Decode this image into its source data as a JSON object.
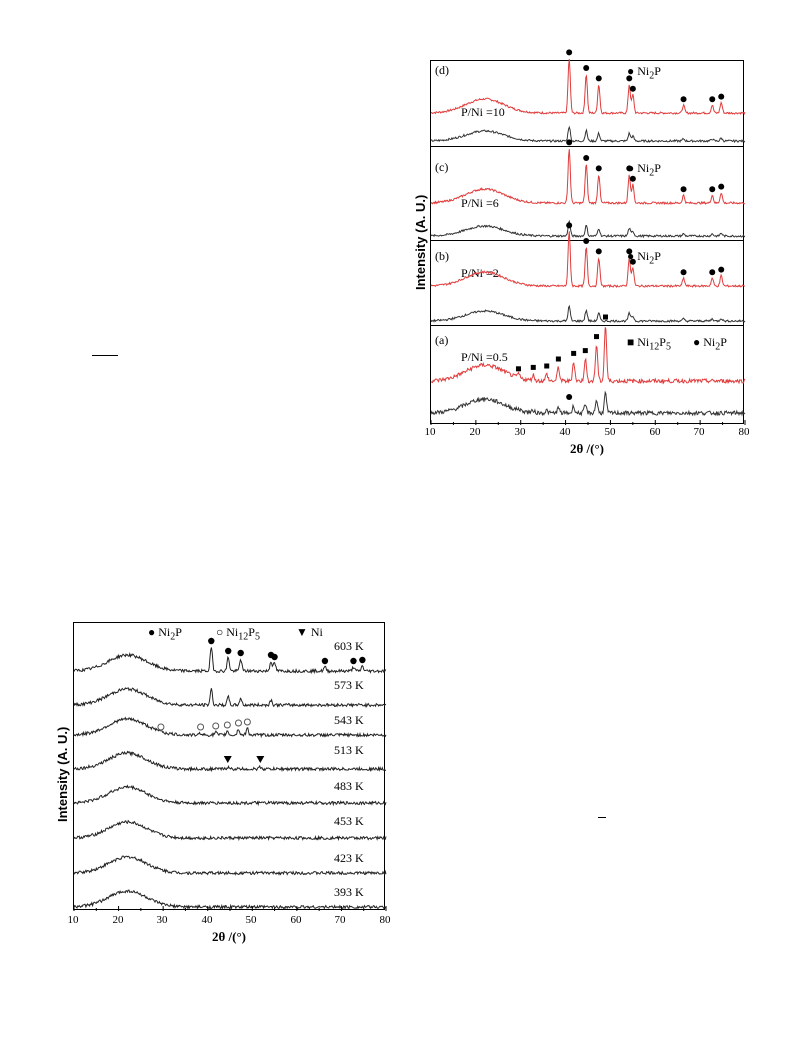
{
  "chart_data": [
    {
      "type": "line",
      "xlabel": "2θ /(°)",
      "ylabel": "Intensity (A. U.)",
      "xlim": [
        10,
        80
      ],
      "xticks": [
        "10",
        "20",
        "30",
        "40",
        "50",
        "60",
        "70",
        "80"
      ],
      "colors": {
        "calcined": "#e03c3c",
        "reduced": "#333333"
      },
      "panels": [
        {
          "label": "(d)",
          "ratio": "P/Ni =10",
          "legend": [
            {
              "marker": "circle",
              "text": "Ni",
              "sub": "2",
              "text2": "P"
            }
          ],
          "peaks_Ni2P": [
            40.8,
            44.6,
            47.4,
            54.2,
            55.0,
            66.3,
            72.7,
            74.7
          ]
        },
        {
          "label": "(c)",
          "ratio": "P/Ni =6",
          "legend": [
            {
              "marker": "circle",
              "text": "Ni",
              "sub": "2",
              "text2": "P"
            }
          ],
          "peaks_Ni2P": [
            40.8,
            44.6,
            47.4,
            54.2,
            55.0,
            66.3,
            72.7,
            74.7
          ]
        },
        {
          "label": "(b)",
          "ratio": "P/Ni =2",
          "legend": [
            {
              "marker": "circle",
              "text": "Ni",
              "sub": "2",
              "text2": "P"
            }
          ],
          "peaks_Ni2P": [
            40.8,
            44.6,
            47.4,
            54.2,
            55.0,
            66.3,
            72.7,
            74.7
          ]
        },
        {
          "label": "(a)",
          "ratio": "P/Ni =0.5",
          "legend": [
            {
              "marker": "square",
              "text": "Ni",
              "sub": "12",
              "text2": "P",
              "sub2": "5"
            },
            {
              "marker": "circle",
              "text": "Ni",
              "sub": "2",
              "text2": "P"
            }
          ],
          "peaks_Ni12P5": [
            29.5,
            32.8,
            35.8,
            38.4,
            41.8,
            44.4,
            46.9,
            48.9
          ],
          "peaks_Ni2P": [
            40.8
          ]
        }
      ]
    },
    {
      "type": "line",
      "xlabel": "2θ /(°)",
      "ylabel": "Intensity (A. U.)",
      "xlim": [
        10,
        80
      ],
      "xticks": [
        "10",
        "20",
        "30",
        "40",
        "50",
        "60",
        "70",
        "80"
      ],
      "legend": [
        {
          "marker": "circle-filled",
          "text": "Ni",
          "sub": "2",
          "text2": "P"
        },
        {
          "marker": "circle-open",
          "text": "Ni",
          "sub": "12",
          "text2": "P",
          "sub2": "5"
        },
        {
          "marker": "triangle",
          "text": "Ni"
        }
      ],
      "series": [
        {
          "name": "603 K",
          "peaks_Ni2P": [
            40.8,
            44.6,
            47.4,
            54.2,
            55.0,
            66.3,
            72.7,
            74.7
          ]
        },
        {
          "name": "573 K",
          "peaks_unmarked": [
            40.8,
            44.6,
            47.4,
            54.2
          ]
        },
        {
          "name": "543 K",
          "peaks_Ni12P5": [
            29.5,
            38.4,
            41.8,
            44.4,
            46.9,
            48.9
          ]
        },
        {
          "name": "513 K",
          "peaks_Ni": [
            44.5,
            51.8
          ]
        },
        {
          "name": "483 K"
        },
        {
          "name": "453 K"
        },
        {
          "name": "423 K"
        },
        {
          "name": "393 K"
        }
      ]
    }
  ]
}
